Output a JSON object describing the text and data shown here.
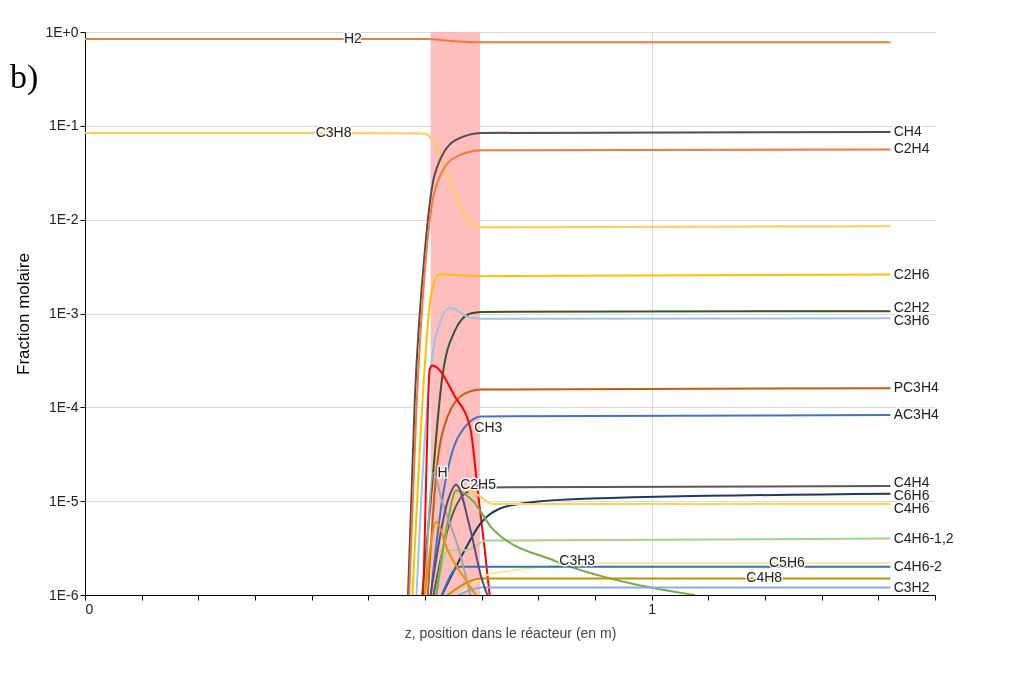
{
  "chart_data": {
    "type": "line",
    "title": "b)",
    "xlabel": "z, position dans le réacteur (en m)",
    "ylabel": "Fraction molaire",
    "log": "y",
    "grid": true,
    "xlim": [
      0,
      1.5
    ],
    "ylim": [
      1e-06,
      1
    ],
    "xticks": [
      0,
      {
        "value": 0.1,
        "label": null
      },
      {
        "value": 0.2,
        "label": null
      },
      {
        "value": 0.3,
        "label": null
      },
      {
        "value": 0.4,
        "label": null
      },
      {
        "value": 0.5,
        "label": null
      },
      {
        "value": 0.6,
        "label": null
      },
      {
        "value": 0.7,
        "label": null
      },
      {
        "value": 0.8,
        "label": null
      },
      {
        "value": 0.9,
        "label": null
      },
      1,
      {
        "value": 1.1,
        "label": null
      },
      {
        "value": 1.2,
        "label": null
      },
      {
        "value": 1.3,
        "label": null
      },
      {
        "value": 1.4,
        "label": null
      },
      {
        "value": 1.5,
        "label": null
      }
    ],
    "yticks": [
      {
        "value": 1e-06,
        "label": "1E-6"
      },
      {
        "value": 1e-05,
        "label": "1E-5"
      },
      {
        "value": 0.0001,
        "label": "1E-4"
      },
      {
        "value": 0.001,
        "label": "1E-3"
      },
      {
        "value": 0.01,
        "label": "1E-2"
      },
      {
        "value": 0.1,
        "label": "1E-1"
      },
      {
        "value": 1,
        "label": "1E+0"
      }
    ],
    "bands": [
      {
        "axis": "x",
        "from": 0.61,
        "to": 0.697,
        "color": "#ffb3b3"
      }
    ],
    "series": [
      {
        "color": "#ed7d31",
        "x": [
          0,
          0.45,
          0.6,
          0.65,
          0.7,
          1.42
        ],
        "values": [
          0.84,
          0.84,
          0.84,
          0.8,
          0.78,
          0.78
        ]
      },
      {
        "color": "#ffcc55",
        "x": [
          0,
          0.4,
          0.6,
          0.62,
          0.64,
          0.66,
          0.68,
          0.7,
          1.42
        ],
        "values": [
          0.084,
          0.084,
          0.083,
          0.06,
          0.03,
          0.015,
          0.009,
          0.0083,
          0.0085
        ]
      },
      {
        "color": "#5a4a4a",
        "x": [
          0.57,
          0.582,
          0.6,
          0.617,
          0.653,
          0.7,
          1.42
        ],
        "values": [
          1e-06,
          0.00012,
          0.0048,
          0.03,
          0.07,
          0.084,
          0.086
        ]
      },
      {
        "color": "#f4793b",
        "x": [
          0.572,
          0.585,
          0.6,
          0.617,
          0.65,
          0.7,
          1.42
        ],
        "values": [
          1e-06,
          0.0001,
          0.003,
          0.02,
          0.045,
          0.055,
          0.056
        ]
      },
      {
        "color": "#ffc000",
        "x": [
          0.578,
          0.6,
          0.61,
          0.625,
          0.7,
          1.42
        ],
        "values": [
          1e-06,
          0.0003,
          0.0015,
          0.0026,
          0.0025,
          0.0026
        ]
      },
      {
        "color": "#375623",
        "x": [
          0.595,
          0.61,
          0.63,
          0.653,
          0.68,
          0.7,
          1.42
        ],
        "values": [
          1e-06,
          1e-05,
          0.0002,
          0.00066,
          0.001,
          0.00104,
          0.00106
        ]
      },
      {
        "color": "#9dc3e6",
        "x": [
          0.585,
          0.6,
          0.62,
          0.645,
          0.68,
          0.7,
          1.42
        ],
        "values": [
          1e-06,
          5e-05,
          0.0006,
          0.00115,
          0.0009,
          0.00088,
          0.00089
        ]
      },
      {
        "color": "#c55a11",
        "x": [
          0.605,
          0.62,
          0.64,
          0.67,
          0.7,
          1.42
        ],
        "values": [
          1e-06,
          2e-05,
          8e-05,
          0.00014,
          0.000155,
          0.00016
        ]
      },
      {
        "color": "#4472c4",
        "x": [
          0.61,
          0.63,
          0.66,
          0.7,
          1.42
        ],
        "values": [
          1e-06,
          1e-05,
          5e-05,
          8e-05,
          8.3e-05
        ]
      },
      {
        "color": "#ff0000",
        "x": [
          0.597,
          0.603,
          0.608,
          0.613,
          0.653,
          0.68,
          0.693,
          0.705,
          0.714
        ],
        "values": [
          1e-06,
          3e-05,
          0.00025,
          0.00028,
          0.00013,
          6e-05,
          1.3e-05,
          3.2e-06,
          1e-06
        ]
      },
      {
        "color": "#595959",
        "x": [
          0.615,
          0.64,
          0.67,
          0.7,
          1.42
        ],
        "values": [
          1e-06,
          5e-06,
          1.2e-05,
          1.4e-05,
          1.45e-05
        ]
      },
      {
        "color": "#203864",
        "x": [
          0.63,
          0.67,
          0.7,
          0.75,
          0.86,
          1.42
        ],
        "values": [
          1e-06,
          3e-06,
          6e-06,
          9e-06,
          1.05e-05,
          1.2e-05
        ]
      },
      {
        "color": "#ffd34d",
        "x": [
          0.62,
          0.645,
          0.665,
          0.69,
          0.72,
          1.42
        ],
        "values": [
          1e-06,
          8e-06,
          1.35e-05,
          1.2e-05,
          9.3e-06,
          9.3e-06
        ]
      },
      {
        "color": "#a9d18e",
        "x": [
          0.62,
          0.64,
          0.67,
          0.71,
          1.42
        ],
        "values": [
          1e-06,
          3e-06,
          3e-06,
          3.8e-06,
          4e-06
        ]
      },
      {
        "color": "#70ad47",
        "x": [
          0.62,
          0.64,
          0.655,
          0.685,
          0.72,
          0.83,
          0.97,
          1.075
        ],
        "values": [
          1e-06,
          6e-06,
          1.3e-05,
          1e-05,
          5e-06,
          2.3e-06,
          1.3e-06,
          1e-06
        ]
      },
      {
        "color": "#ffe699",
        "x": [
          0.66,
          0.72,
          0.95,
          1.2,
          1.42
        ],
        "values": [
          1e-06,
          1.7e-06,
          2.2e-06,
          2.2e-06,
          2.2e-06
        ]
      },
      {
        "color": "#2e75b6",
        "x": [
          0.63,
          0.66,
          1.42
        ],
        "values": [
          1e-06,
          2e-06,
          2e-06
        ]
      },
      {
        "color": "#bf9000",
        "x": [
          0.64,
          0.7,
          1.16,
          1.42
        ],
        "values": [
          1e-06,
          1.5e-06,
          1.5e-06,
          1.5e-06
        ]
      },
      {
        "color": "#8faadc",
        "x": [
          0.66,
          0.7,
          1.42
        ],
        "values": [
          1e-06,
          1.2e-06,
          1.2e-06
        ]
      },
      {
        "color": "#a5a5a5",
        "x": [
          0.6,
          0.615,
          0.63,
          0.66,
          0.68
        ],
        "values": [
          1e-06,
          2e-05,
          1e-05,
          3e-06,
          1e-06
        ]
      },
      {
        "color": "#5b4a7a",
        "x": [
          0.61,
          0.64,
          0.655,
          0.68,
          0.7,
          0.71
        ],
        "values": [
          1e-06,
          1e-05,
          1.5e-05,
          5e-06,
          1.5e-06,
          1e-06
        ]
      },
      {
        "color": "#e69500",
        "x": [
          0.6,
          0.62,
          0.64,
          0.67,
          0.69
        ],
        "values": [
          1e-06,
          6e-06,
          3e-06,
          1.5e-06,
          1e-06
        ]
      }
    ],
    "annotations": [
      {
        "text": "H2",
        "x": 0.45,
        "y": 0.84
      },
      {
        "text": "C3H8",
        "x": 0.4,
        "y": 0.084
      },
      {
        "text": "CH4",
        "x": 1.42,
        "y": 0.086
      },
      {
        "text": "C2H4",
        "x": 1.42,
        "y": 0.056
      },
      {
        "text": "C2H6",
        "x": 1.42,
        "y": 0.0026
      },
      {
        "text": "C2H2",
        "x": 1.42,
        "y": 0.00106
      },
      {
        "text": "C3H6",
        "x": 1.42,
        "y": 0.00089
      },
      {
        "text": "PC3H4",
        "x": 1.42,
        "y": 0.00016
      },
      {
        "text": "AC3H4",
        "x": 1.42,
        "y": 8.3e-05
      },
      {
        "text": "C4H4",
        "x": 1.42,
        "y": 1.45e-05
      },
      {
        "text": "C6H6",
        "x": 1.42,
        "y": 1.2e-05
      },
      {
        "text": "C4H6",
        "x": 1.42,
        "y": 9.3e-06
      },
      {
        "text": "C4H6-1,2",
        "x": 1.42,
        "y": 4e-06
      },
      {
        "text": "C4H6-2",
        "x": 1.42,
        "y": 2e-06
      },
      {
        "text": "C3H2",
        "x": 1.42,
        "y": 1.2e-06
      },
      {
        "text": "C5H6",
        "x": 1.2,
        "y": 2.2e-06
      },
      {
        "text": "C4H8",
        "x": 1.16,
        "y": 1.5e-06
      },
      {
        "text": "CH3",
        "x": 0.68,
        "y": 6e-05
      },
      {
        "text": "C2H5",
        "x": 0.655,
        "y": 1.5e-05
      },
      {
        "text": "H",
        "x": 0.615,
        "y": 2e-05
      },
      {
        "text": "C3H3",
        "x": 0.83,
        "y": 2.3e-06
      }
    ]
  }
}
